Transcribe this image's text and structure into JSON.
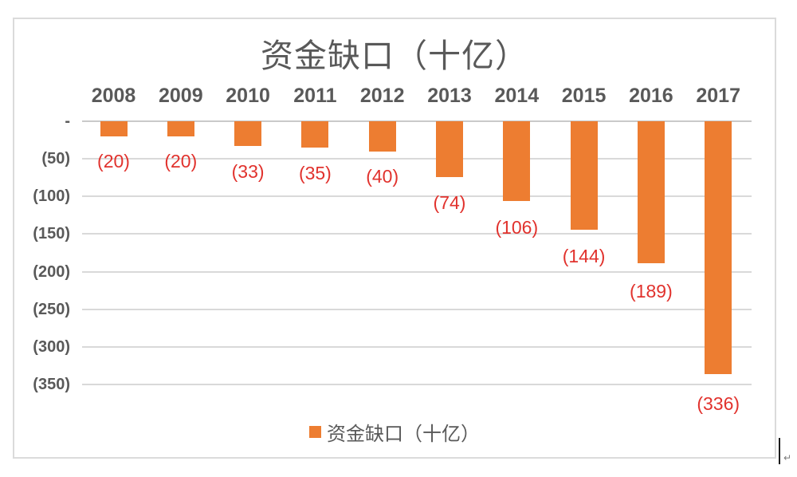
{
  "chart_data": {
    "type": "bar",
    "title": "资金缺口（十亿）",
    "categories": [
      "2008",
      "2009",
      "2010",
      "2011",
      "2012",
      "2013",
      "2014",
      "2015",
      "2016",
      "2017"
    ],
    "series": [
      {
        "name": "资金缺口（十亿）",
        "values": [
          -20,
          -20,
          -33,
          -35,
          -40,
          -74,
          -106,
          -144,
          -189,
          -336
        ],
        "color": "#ED7D31"
      }
    ],
    "data_labels": [
      "(20)",
      "(20)",
      "(33)",
      "(35)",
      "(40)",
      "(74)",
      "(106)",
      "(144)",
      "(189)",
      "(336)"
    ],
    "data_label_color": "#E1322D",
    "y_axis": {
      "ticks": [
        {
          "label": "-",
          "value": 0
        },
        {
          "label": "(50)",
          "value": -50
        },
        {
          "label": "(100)",
          "value": -100
        },
        {
          "label": "(150)",
          "value": -150
        },
        {
          "label": "(200)",
          "value": -200
        },
        {
          "label": "(250)",
          "value": -250
        },
        {
          "label": "(300)",
          "value": -300
        },
        {
          "label": "(350)",
          "value": -350
        }
      ],
      "range": [
        -350,
        0
      ]
    },
    "xlabel": "",
    "ylabel": "",
    "grid": true,
    "gridline_color": "#D9D9D9",
    "zero_line_color": "#C9C9C9",
    "axis_text_color": "#595959",
    "legend": {
      "position": "bottom",
      "entries": [
        {
          "label": "资金缺口（十亿）",
          "swatch_color": "#ED7D31"
        }
      ]
    }
  }
}
